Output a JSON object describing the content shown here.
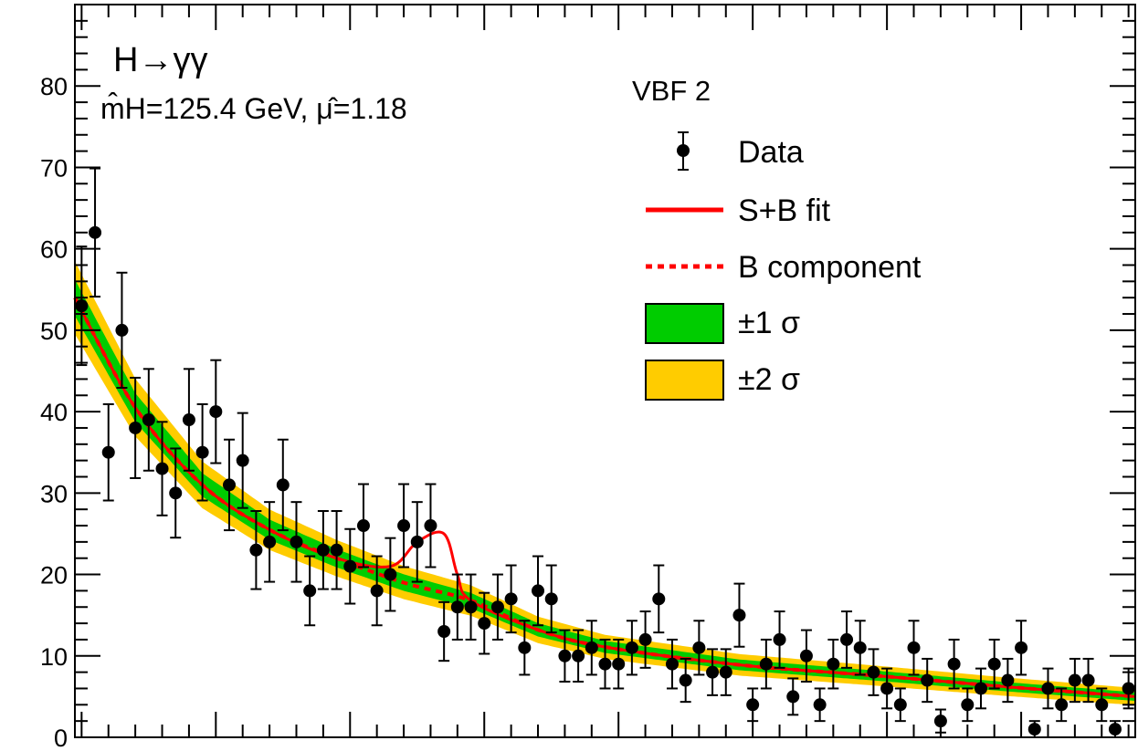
{
  "chart_data": {
    "type": "scatter",
    "title": "H→γγ",
    "subtitle": "m̂H=125.4 GeV, μ̂=1.18",
    "category_label": "VBF 2",
    "xlabel": "",
    "ylabel": "",
    "xlim": [
      0.5,
      79.5
    ],
    "ylim": [
      0,
      90
    ],
    "y_ticks": [
      0,
      10,
      20,
      30,
      40,
      50,
      60,
      70,
      80
    ],
    "y_tick_labels": [
      "0",
      "10",
      "20",
      "30",
      "40",
      "50",
      "60",
      "70",
      "80"
    ],
    "grid": false,
    "legend_position": "top-right",
    "legend": {
      "data": "Data",
      "fit": "S+B fit",
      "bkg": "B component",
      "band1": "±1 σ",
      "band2": "±2 σ"
    },
    "colors": {
      "fit": "#ff0000",
      "band1": "#00cc00",
      "band2": "#ffcc00",
      "data": "#000000"
    },
    "series": [
      {
        "name": "Data",
        "x": [
          1,
          2,
          3,
          4,
          5,
          6,
          7,
          8,
          9,
          10,
          11,
          12,
          13,
          14,
          15,
          16,
          17,
          18,
          19,
          20,
          21,
          22,
          23,
          24,
          25,
          26,
          27,
          28,
          29,
          30,
          31,
          32,
          33,
          34,
          35,
          36,
          37,
          38,
          39,
          40,
          41,
          42,
          43,
          44,
          45,
          46,
          47,
          48,
          49,
          50,
          51,
          52,
          53,
          54,
          55,
          56,
          57,
          58,
          59,
          60,
          61,
          62,
          63,
          64,
          65,
          66,
          67,
          68,
          69,
          70,
          71,
          72,
          73,
          74,
          75,
          76,
          77,
          78,
          79
        ],
        "y": [
          53,
          62,
          35,
          50,
          38,
          39,
          33,
          30,
          39,
          35,
          40,
          31,
          34,
          23,
          24,
          31,
          24,
          18,
          23,
          23,
          21,
          26,
          18,
          20,
          26,
          24,
          26,
          13,
          16,
          16,
          14,
          16,
          17,
          11,
          18,
          17,
          10,
          10,
          11,
          9,
          9,
          11,
          12,
          17,
          9,
          7,
          11,
          8,
          8,
          15,
          4,
          9,
          12,
          5,
          10,
          4,
          9,
          12,
          11,
          8,
          6,
          4,
          11,
          7,
          2,
          9,
          4,
          6,
          9,
          7,
          11,
          1,
          6,
          4,
          7,
          7,
          4,
          1,
          6
        ]
      },
      {
        "name": "S+B fit",
        "x": [
          0.5,
          5,
          10,
          15,
          20,
          24,
          26,
          28,
          29,
          30,
          35,
          40,
          50,
          60,
          70,
          79.5
        ],
        "y": [
          54,
          40.5,
          31,
          25.5,
          22,
          21,
          24,
          25,
          20,
          16.8,
          13.2,
          11.1,
          8.9,
          7.6,
          6.2,
          5
        ]
      },
      {
        "name": "B component",
        "x": [
          0.5,
          5,
          10,
          15,
          20,
          25,
          30,
          35,
          40,
          50,
          60,
          70,
          79.5
        ],
        "y": [
          54,
          40.5,
          31,
          25.5,
          22,
          19,
          16.8,
          13.2,
          11.1,
          8.9,
          7.6,
          6.2,
          5
        ]
      }
    ]
  }
}
